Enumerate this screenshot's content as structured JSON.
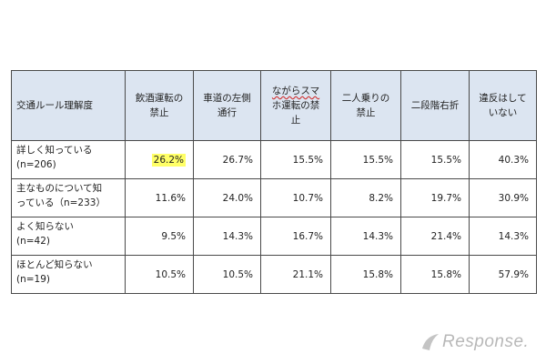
{
  "chart_data": {
    "type": "table",
    "corner_header": "交通ルール理解度",
    "column_headers": [
      [
        "飲酒運転の",
        "禁止"
      ],
      [
        "車道の左側",
        "通行"
      ],
      [
        "ながらスマ",
        "ホ運転の禁",
        "止"
      ],
      [
        "二人乗りの",
        "禁止"
      ],
      [
        "二段階右折"
      ],
      [
        "違反はして",
        "いない"
      ]
    ],
    "rows": [
      {
        "label": [
          "詳しく知っている",
          "(n=206)"
        ],
        "values": [
          "26.2%",
          "26.7%",
          "15.5%",
          "15.5%",
          "15.5%",
          "40.3%"
        ]
      },
      {
        "label": [
          "主なものについて知",
          "っている（n=233）"
        ],
        "values": [
          "11.6%",
          "24.0%",
          "10.7%",
          "8.2%",
          "19.7%",
          "30.9%"
        ]
      },
      {
        "label": [
          "よく知らない",
          "(n=42)"
        ],
        "values": [
          "9.5%",
          "14.3%",
          "16.7%",
          "14.3%",
          "21.4%",
          "14.3%"
        ]
      },
      {
        "label": [
          "ほとんど知らない",
          "(n=19)"
        ],
        "values": [
          "10.5%",
          "10.5%",
          "21.1%",
          "15.8%",
          "15.8%",
          "57.9%"
        ]
      }
    ],
    "highlighted_cell": {
      "row": 0,
      "col": 0,
      "color": "#ffff66"
    },
    "header_bg": "#dce5f1"
  },
  "watermark": {
    "text": "Response."
  }
}
